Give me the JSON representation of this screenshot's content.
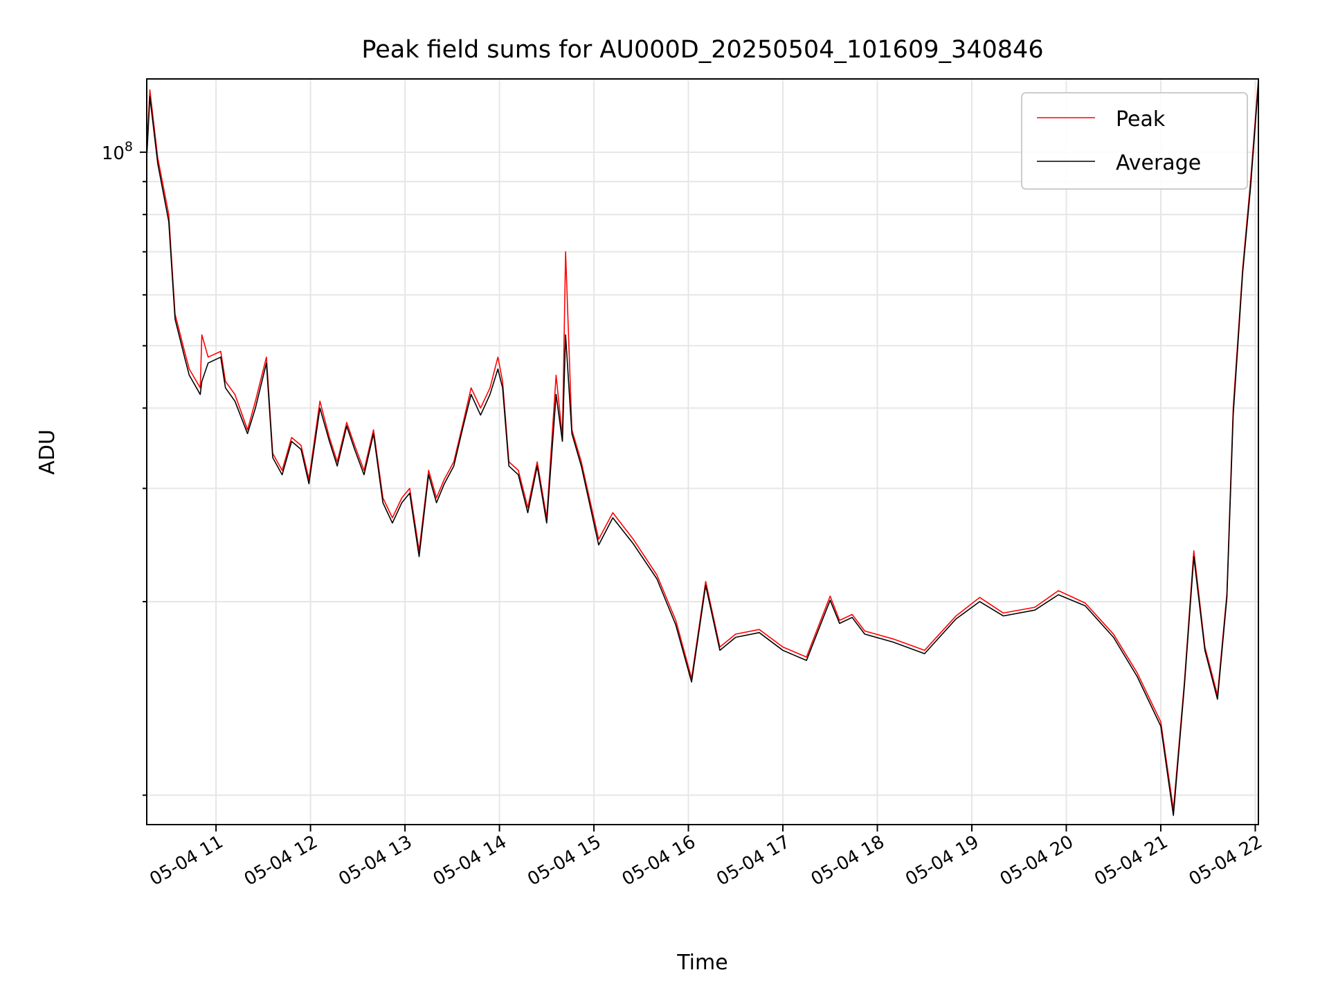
{
  "chart_data": {
    "type": "line",
    "title": "Peak field sums for AU000D_20250504_101609_340846",
    "xlabel": "Time",
    "ylabel": "ADU",
    "yscale": "log",
    "grid": true,
    "legend_position": "top-right",
    "x_range": [
      "2025-05-04 10:16",
      "2025-05-04 22:02"
    ],
    "ylim": [
      9000000,
      130000000
    ],
    "x_tick_labels": [
      "05-04 11",
      "05-04 12",
      "05-04 13",
      "05-04 14",
      "05-04 15",
      "05-04 16",
      "05-04 17",
      "05-04 18",
      "05-04 19",
      "05-04 20",
      "05-04 21",
      "05-04 22"
    ],
    "y_tick_label": {
      "base": "10",
      "exponent": "8"
    },
    "series": [
      {
        "name": "Peak",
        "color": "#ff0000",
        "x": [
          "2025-05-04 10:16",
          "2025-05-04 10:18",
          "2025-05-04 10:23",
          "2025-05-04 10:30",
          "2025-05-04 10:34",
          "2025-05-04 10:40",
          "2025-05-04 10:43",
          "2025-05-04 10:50",
          "2025-05-04 10:51",
          "2025-05-04 10:55",
          "2025-05-04 11:03",
          "2025-05-04 11:06",
          "2025-05-04 11:12",
          "2025-05-04 11:20",
          "2025-05-04 11:25",
          "2025-05-04 11:32",
          "2025-05-04 11:36",
          "2025-05-04 11:42",
          "2025-05-04 11:48",
          "2025-05-04 11:54",
          "2025-05-04 11:59",
          "2025-05-04 12:06",
          "2025-05-04 12:12",
          "2025-05-04 12:17",
          "2025-05-04 12:23",
          "2025-05-04 12:28",
          "2025-05-04 12:34",
          "2025-05-04 12:40",
          "2025-05-04 12:46",
          "2025-05-04 12:52",
          "2025-05-04 12:58",
          "2025-05-04 13:03",
          "2025-05-04 13:09",
          "2025-05-04 13:15",
          "2025-05-04 13:20",
          "2025-05-04 13:25",
          "2025-05-04 13:31",
          "2025-05-04 13:37",
          "2025-05-04 13:42",
          "2025-05-04 13:48",
          "2025-05-04 13:54",
          "2025-05-04 13:59",
          "2025-05-04 14:02",
          "2025-05-04 14:06",
          "2025-05-04 14:12",
          "2025-05-04 14:18",
          "2025-05-04 14:24",
          "2025-05-04 14:30",
          "2025-05-04 14:36",
          "2025-05-04 14:40",
          "2025-05-04 14:42",
          "2025-05-04 14:46",
          "2025-05-04 14:52",
          "2025-05-04 15:03",
          "2025-05-04 15:12",
          "2025-05-04 15:25",
          "2025-05-04 15:40",
          "2025-05-04 15:52",
          "2025-05-04 16:02",
          "2025-05-04 16:11",
          "2025-05-04 16:20",
          "2025-05-04 16:30",
          "2025-05-04 16:45",
          "2025-05-04 17:00",
          "2025-05-04 17:15",
          "2025-05-04 17:30",
          "2025-05-04 17:36",
          "2025-05-04 17:44",
          "2025-05-04 17:52",
          "2025-05-04 18:10",
          "2025-05-04 18:30",
          "2025-05-04 18:50",
          "2025-05-04 19:05",
          "2025-05-04 19:20",
          "2025-05-04 19:40",
          "2025-05-04 19:55",
          "2025-05-04 20:12",
          "2025-05-04 20:30",
          "2025-05-04 20:45",
          "2025-05-04 21:00",
          "2025-05-04 21:08",
          "2025-05-04 21:15",
          "2025-05-04 21:21",
          "2025-05-04 21:28",
          "2025-05-04 21:36",
          "2025-05-04 21:42",
          "2025-05-04 21:46",
          "2025-05-04 21:52",
          "2025-05-04 21:57",
          "2025-05-04 22:02"
        ],
        "values": [
          100000000,
          125000000,
          98000000,
          80000000,
          56000000,
          49000000,
          46000000,
          43000000,
          52000000,
          48000000,
          49000000,
          44000000,
          42000000,
          37000000,
          41000000,
          48000000,
          34000000,
          32000000,
          36000000,
          35000000,
          31000000,
          41000000,
          36000000,
          33000000,
          38000000,
          35000000,
          32000000,
          37000000,
          29000000,
          27000000,
          29000000,
          30000000,
          24000000,
          32000000,
          29000000,
          31000000,
          33000000,
          38000000,
          43000000,
          40000000,
          43000000,
          48000000,
          44000000,
          33000000,
          32000000,
          28000000,
          33000000,
          27000000,
          45000000,
          36000000,
          70000000,
          37000000,
          33000000,
          25000000,
          27500000,
          25000000,
          22000000,
          18700000,
          15200000,
          21500000,
          17000000,
          17800000,
          18100000,
          17000000,
          16400000,
          20400000,
          18700000,
          19100000,
          18000000,
          17500000,
          16800000,
          19000000,
          20300000,
          19200000,
          19600000,
          20800000,
          19900000,
          17800000,
          15500000,
          13000000,
          9500000,
          15000000,
          24000000,
          17000000,
          14300000,
          20600000,
          40000000,
          66000000,
          90000000,
          130000000
        ]
      },
      {
        "name": "Average",
        "color": "#000000",
        "x": [
          "2025-05-04 10:16",
          "2025-05-04 10:18",
          "2025-05-04 10:23",
          "2025-05-04 10:30",
          "2025-05-04 10:34",
          "2025-05-04 10:40",
          "2025-05-04 10:43",
          "2025-05-04 10:50",
          "2025-05-04 10:51",
          "2025-05-04 10:55",
          "2025-05-04 11:03",
          "2025-05-04 11:06",
          "2025-05-04 11:12",
          "2025-05-04 11:20",
          "2025-05-04 11:25",
          "2025-05-04 11:32",
          "2025-05-04 11:36",
          "2025-05-04 11:42",
          "2025-05-04 11:48",
          "2025-05-04 11:54",
          "2025-05-04 11:59",
          "2025-05-04 12:06",
          "2025-05-04 12:12",
          "2025-05-04 12:17",
          "2025-05-04 12:23",
          "2025-05-04 12:28",
          "2025-05-04 12:34",
          "2025-05-04 12:40",
          "2025-05-04 12:46",
          "2025-05-04 12:52",
          "2025-05-04 12:58",
          "2025-05-04 13:03",
          "2025-05-04 13:09",
          "2025-05-04 13:15",
          "2025-05-04 13:20",
          "2025-05-04 13:25",
          "2025-05-04 13:31",
          "2025-05-04 13:37",
          "2025-05-04 13:42",
          "2025-05-04 13:48",
          "2025-05-04 13:54",
          "2025-05-04 13:59",
          "2025-05-04 14:02",
          "2025-05-04 14:06",
          "2025-05-04 14:12",
          "2025-05-04 14:18",
          "2025-05-04 14:24",
          "2025-05-04 14:30",
          "2025-05-04 14:36",
          "2025-05-04 14:40",
          "2025-05-04 14:42",
          "2025-05-04 14:46",
          "2025-05-04 14:52",
          "2025-05-04 15:03",
          "2025-05-04 15:12",
          "2025-05-04 15:25",
          "2025-05-04 15:40",
          "2025-05-04 15:52",
          "2025-05-04 16:02",
          "2025-05-04 16:11",
          "2025-05-04 16:20",
          "2025-05-04 16:30",
          "2025-05-04 16:45",
          "2025-05-04 17:00",
          "2025-05-04 17:15",
          "2025-05-04 17:30",
          "2025-05-04 17:36",
          "2025-05-04 17:44",
          "2025-05-04 17:52",
          "2025-05-04 18:10",
          "2025-05-04 18:30",
          "2025-05-04 18:50",
          "2025-05-04 19:05",
          "2025-05-04 19:20",
          "2025-05-04 19:40",
          "2025-05-04 19:55",
          "2025-05-04 20:12",
          "2025-05-04 20:30",
          "2025-05-04 20:45",
          "2025-05-04 21:00",
          "2025-05-04 21:08",
          "2025-05-04 21:15",
          "2025-05-04 21:21",
          "2025-05-04 21:28",
          "2025-05-04 21:36",
          "2025-05-04 21:42",
          "2025-05-04 21:46",
          "2025-05-04 21:52",
          "2025-05-04 21:57",
          "2025-05-04 22:02"
        ],
        "values": [
          98000000,
          122000000,
          96000000,
          78000000,
          55000000,
          48000000,
          45000000,
          42000000,
          44000000,
          47000000,
          48000000,
          43000000,
          41000000,
          36500000,
          40000000,
          47000000,
          33500000,
          31500000,
          35500000,
          34500000,
          30500000,
          40000000,
          35500000,
          32500000,
          37500000,
          34500000,
          31500000,
          36500000,
          28500000,
          26500000,
          28500000,
          29500000,
          23500000,
          31500000,
          28500000,
          30500000,
          32500000,
          37500000,
          42000000,
          39000000,
          42000000,
          46000000,
          43000000,
          32500000,
          31500000,
          27500000,
          32500000,
          26500000,
          42000000,
          35500000,
          52000000,
          36500000,
          32500000,
          24500000,
          27000000,
          24600000,
          21700000,
          18400000,
          15000000,
          21200000,
          16800000,
          17600000,
          17900000,
          16800000,
          16200000,
          20100000,
          18500000,
          18900000,
          17800000,
          17300000,
          16600000,
          18800000,
          20000000,
          19000000,
          19400000,
          20500000,
          19700000,
          17600000,
          15300000,
          12800000,
          9300000,
          14800000,
          23500000,
          16800000,
          14100000,
          20300000,
          39000000,
          65000000,
          88000000,
          128000000
        ]
      }
    ]
  }
}
